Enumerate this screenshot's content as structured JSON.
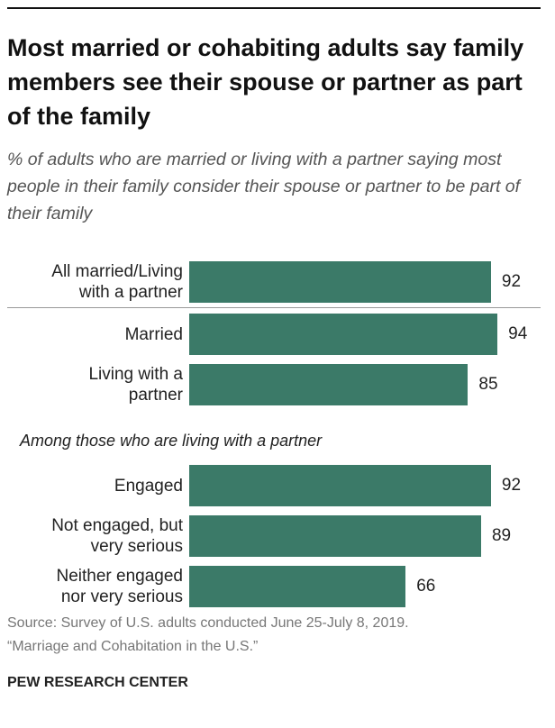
{
  "chart_data": {
    "type": "bar",
    "title": "Most married or cohabiting adults say family members see their spouse or partner as part of the family",
    "subtitle": "% of adults who are married or living with a partner saying most people in their family consider their spouse or partner to be part of their family",
    "categories": [
      "All married/Living\nwith a partner",
      "Married",
      "Living with a\npartner",
      "Engaged",
      "Not engaged, but\nvery serious",
      "Neither engaged\nnor very serious"
    ],
    "values": [
      92,
      94,
      85,
      92,
      89,
      66
    ],
    "color": "#3b7a68",
    "group_label": "Among those who are living with a partner",
    "source": [
      "Source: Survey of U.S. adults conducted June 25-July 8, 2019.",
      "“Marriage and Cohabitation in the U.S.”"
    ],
    "footer": "PEW RESEARCH CENTER"
  }
}
